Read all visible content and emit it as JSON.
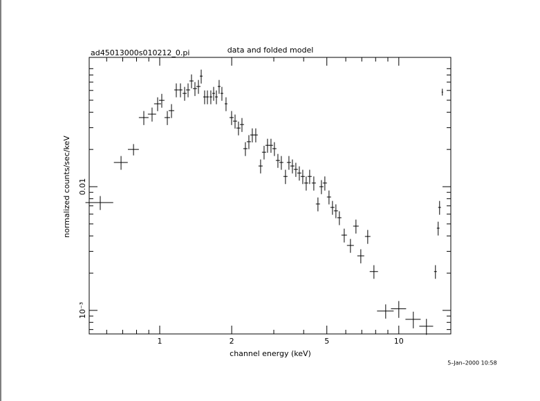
{
  "chart_data": {
    "type": "errorbar",
    "title": "data and folded model",
    "subtitle": "ad45013000s010212_0.pi",
    "xlabel": "channel energy (keV)",
    "ylabel": "normalized counts/sec/keV",
    "annotation": "5–Jan–2000 10:58",
    "xscale": "log",
    "yscale": "log",
    "xlim": [
      0.507,
      16.5
    ],
    "ylim": [
      0.000645,
      0.111
    ],
    "xticks": [
      1,
      2,
      5,
      10
    ],
    "yticks": [
      {
        "value": 0.001,
        "label": "10⁻³"
      },
      0.01
    ],
    "xminorticks": [
      0.6,
      0.7,
      0.8,
      0.9,
      3,
      4,
      6,
      7,
      8,
      9
    ],
    "yminorticks": [
      0.0007,
      0.0008,
      0.0009,
      0.002,
      0.003,
      0.004,
      0.005,
      0.006,
      0.007,
      0.008,
      0.009,
      0.02,
      0.03,
      0.04,
      0.05,
      0.06,
      0.07,
      0.08,
      0.09
    ],
    "color": "#000000",
    "x": [
      0.564,
      0.689,
      0.777,
      0.858,
      0.929,
      0.98,
      1.02,
      1.076,
      1.12,
      1.173,
      1.221,
      1.271,
      1.314,
      1.358,
      1.404,
      1.452,
      1.491,
      1.541,
      1.583,
      1.636,
      1.681,
      1.726,
      1.772,
      1.82,
      1.894,
      1.998,
      2.066,
      2.135,
      2.208,
      2.282,
      2.36,
      2.439,
      2.522,
      2.642,
      2.732,
      2.824,
      2.92,
      3.018,
      3.121,
      3.226,
      3.357,
      3.471,
      3.589,
      3.71,
      3.836,
      3.966,
      4.099,
      4.238,
      4.411,
      4.59,
      4.746,
      4.906,
      5.106,
      5.279,
      5.457,
      5.642,
      5.912,
      6.277,
      6.619,
      6.936,
      7.413,
      7.87,
      8.813,
      10.0,
      11.5,
      13.05,
      14.23,
      14.61,
      14.81,
      15.21
    ],
    "xerr": [
      0.075,
      0.046,
      0.041,
      0.04,
      0.037,
      0.033,
      0.027,
      0.029,
      0.03,
      0.023,
      0.024,
      0.025,
      0.026,
      0.027,
      0.028,
      0.029,
      0.02,
      0.021,
      0.021,
      0.022,
      0.022,
      0.023,
      0.024,
      0.024,
      0.025,
      0.04,
      0.041,
      0.043,
      0.044,
      0.046,
      0.047,
      0.049,
      0.05,
      0.053,
      0.055,
      0.056,
      0.058,
      0.06,
      0.062,
      0.064,
      0.067,
      0.069,
      0.072,
      0.074,
      0.077,
      0.079,
      0.082,
      0.085,
      0.088,
      0.092,
      0.095,
      0.098,
      0.102,
      0.105,
      0.109,
      0.113,
      0.157,
      0.209,
      0.176,
      0.231,
      0.197,
      0.314,
      0.704,
      0.73,
      0.84,
      0.87,
      0.19,
      0.19,
      0.2,
      0.1
    ],
    "y": [
      0.00744,
      0.0157,
      0.02,
      0.0362,
      0.0386,
      0.0468,
      0.0499,
      0.0362,
      0.0412,
      0.0606,
      0.0606,
      0.0568,
      0.0606,
      0.0716,
      0.0621,
      0.0646,
      0.0783,
      0.0532,
      0.0532,
      0.0532,
      0.0568,
      0.0532,
      0.0646,
      0.0568,
      0.0468,
      0.0362,
      0.0339,
      0.0298,
      0.0318,
      0.0203,
      0.0231,
      0.0262,
      0.0262,
      0.0147,
      0.019,
      0.0216,
      0.0216,
      0.0203,
      0.0163,
      0.0157,
      0.0121,
      0.0157,
      0.0147,
      0.0138,
      0.0129,
      0.0121,
      0.0107,
      0.0121,
      0.0107,
      0.00725,
      0.01,
      0.0107,
      0.00825,
      0.0068,
      0.00638,
      0.00561,
      0.00406,
      0.00335,
      0.0048,
      0.00276,
      0.00396,
      0.00206,
      0.000988,
      0.00103,
      0.000846,
      0.000744,
      0.00206,
      0.00462,
      0.0068,
      0.0582
    ],
    "yerr": [
      0.00096,
      0.002,
      0.0021,
      0.0047,
      0.005,
      0.006,
      0.0064,
      0.0047,
      0.0053,
      0.0078,
      0.0078,
      0.0073,
      0.0078,
      0.0092,
      0.008,
      0.0083,
      0.0101,
      0.0068,
      0.0068,
      0.0068,
      0.0073,
      0.0068,
      0.0083,
      0.0073,
      0.006,
      0.0047,
      0.0044,
      0.0038,
      0.0041,
      0.0026,
      0.003,
      0.0034,
      0.0034,
      0.0019,
      0.0024,
      0.0028,
      0.0028,
      0.0026,
      0.0021,
      0.002,
      0.0016,
      0.002,
      0.0019,
      0.0018,
      0.0017,
      0.0016,
      0.0014,
      0.0016,
      0.0014,
      0.00093,
      0.0013,
      0.0014,
      0.00106,
      0.00087,
      0.00082,
      0.00072,
      0.00052,
      0.00043,
      0.00062,
      0.00036,
      0.00051,
      0.00026,
      0.00013,
      0.00016,
      0.00013,
      0.00011,
      0.00026,
      0.00059,
      0.00087,
      0.0037
    ]
  }
}
